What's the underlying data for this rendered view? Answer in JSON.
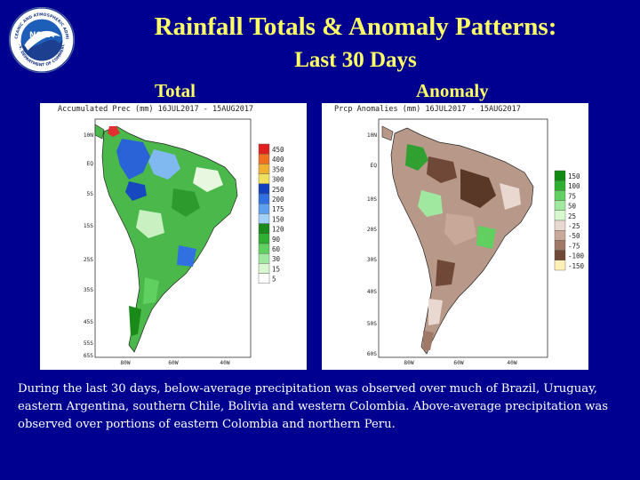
{
  "header": {
    "title": "Rainfall Totals & Anomaly Patterns:",
    "subtitle": "Last 30 Days"
  },
  "logo": {
    "text": "NOAA",
    "ring_text": "NATIONAL OCEANIC AND ATMOSPHERIC ADMINISTRATION",
    "ring_text_bottom": "U.S. DEPARTMENT OF COMMERCE",
    "colors": {
      "ring": "#ffffff",
      "sky": "#1d5fb8",
      "bird": "#ffffff"
    }
  },
  "panels": {
    "total": {
      "label": "Total",
      "map_title": "Accumulated Prec (mm) 16JUL2017 - 15AUG2017",
      "lat_labels": [
        "10N",
        "EQ",
        "5S",
        "15S",
        "25S",
        "35S",
        "45S",
        "55S",
        "65S"
      ],
      "lon_labels": [
        "80W",
        "60W",
        "40W"
      ],
      "legend": [
        "450",
        "400",
        "350",
        "300",
        "250",
        "200",
        "175",
        "150",
        "120",
        "90",
        "60",
        "30",
        "15",
        "5"
      ],
      "legend_colors": [
        "#e02020",
        "#f07020",
        "#f0b030",
        "#f0e060",
        "#1040c0",
        "#3070e0",
        "#60a0f0",
        "#a0d0f8",
        "#1a8a1a",
        "#30b030",
        "#60d060",
        "#a0e8a0",
        "#d8f8d0",
        "#ffffff"
      ]
    },
    "anomaly": {
      "label": "Anomaly",
      "map_title": "Prcp Anomalies (mm) 16JUL2017 - 15AUG2017",
      "lat_labels": [
        "10N",
        "EQ",
        "10S",
        "20S",
        "30S",
        "40S",
        "50S",
        "60S"
      ],
      "lon_labels": [
        "80W",
        "60W",
        "40W"
      ],
      "legend": [
        "150",
        "100",
        "75",
        "50",
        "25",
        "-25",
        "-50",
        "-75",
        "-100",
        "-150"
      ],
      "legend_colors": [
        "#108a10",
        "#30b030",
        "#60d060",
        "#a0e8a0",
        "#d8f8d0",
        "#e8d8d0",
        "#c8a898",
        "#a07868",
        "#704838",
        "#fff0b8"
      ]
    }
  },
  "caption": "During the last 30 days, below-average precipitation was observed over much of Brazil, Uruguay, eastern Argentina, southern Chile, Bolivia and western Colombia.  Above-average precipitation was observed over portions of eastern Colombia and northern Peru."
}
